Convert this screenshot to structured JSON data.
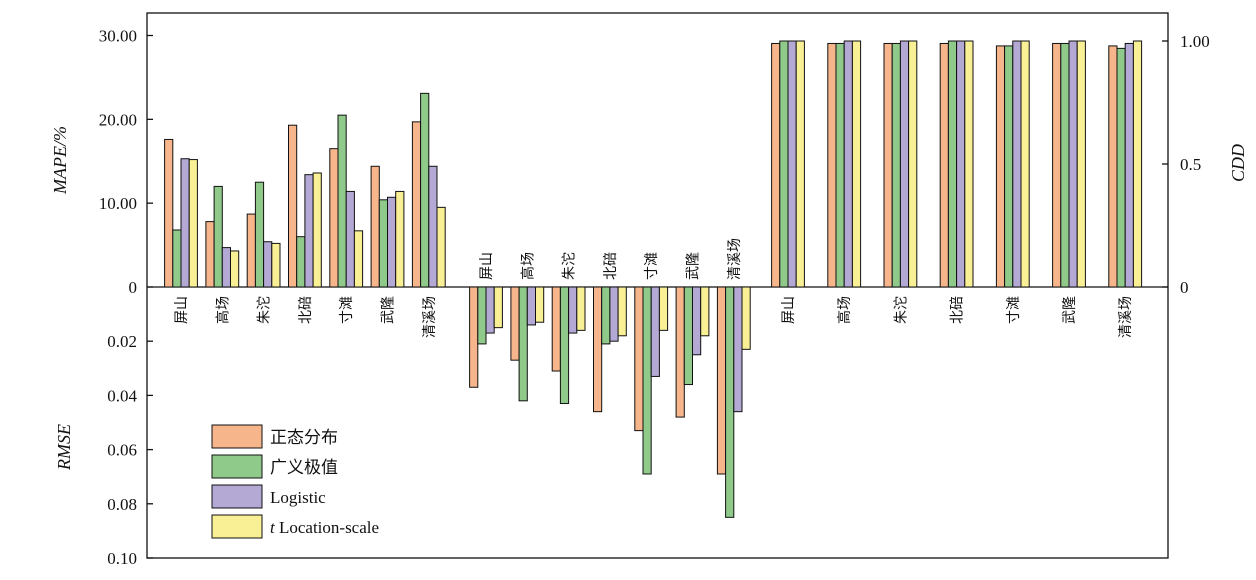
{
  "chart_data": {
    "type": "bar",
    "stations": [
      "屏山",
      "高场",
      "朱沱",
      "北碚",
      "寸滩",
      "武隆",
      "清溪场"
    ],
    "series": [
      {
        "name": "正态分布",
        "color": "#f7b58b"
      },
      {
        "name": "广义极值",
        "color": "#8fca8a"
      },
      {
        "name": "Logistic",
        "color": "#b4a8d4"
      },
      {
        "name": "Location-scale",
        "name_prefix": "t",
        "color": "#f9f095"
      }
    ],
    "panels": [
      {
        "metric": "MAPE/%",
        "axis": "left-upper",
        "range": [
          0,
          32.5
        ],
        "ticks": [
          "0",
          "10.00",
          "20.00",
          "30.00"
        ],
        "tick_values": [
          0,
          10,
          20,
          30
        ],
        "values": {
          "正态分布": [
            17.6,
            7.8,
            8.7,
            19.3,
            16.5,
            14.4,
            19.7
          ],
          "广义极值": [
            6.8,
            12.0,
            12.5,
            6.0,
            20.5,
            10.4,
            23.1
          ],
          "Logistic": [
            15.3,
            4.7,
            5.4,
            13.4,
            11.4,
            10.7,
            14.4
          ],
          "Location-scale": [
            15.2,
            4.3,
            5.2,
            13.6,
            6.7,
            11.4,
            9.5
          ]
        }
      },
      {
        "metric": "RMSE",
        "axis": "left-lower",
        "range": [
          0,
          0.1
        ],
        "ticks": [
          "0.02",
          "0.04",
          "0.06",
          "0.08",
          "0.10"
        ],
        "tick_values": [
          0.02,
          0.04,
          0.06,
          0.08,
          0.1
        ],
        "values": {
          "正态分布": [
            0.037,
            0.027,
            0.031,
            0.046,
            0.053,
            0.048,
            0.069
          ],
          "广义极值": [
            0.021,
            0.042,
            0.043,
            0.021,
            0.069,
            0.036,
            0.085
          ],
          "Logistic": [
            0.017,
            0.014,
            0.017,
            0.02,
            0.033,
            0.025,
            0.046
          ],
          "Location-scale": [
            0.015,
            0.013,
            0.016,
            0.018,
            0.016,
            0.018,
            0.023
          ]
        }
      },
      {
        "metric": "CDD",
        "axis": "right",
        "range": [
          0,
          1.08
        ],
        "ticks": [
          "0",
          "0.5",
          "1.00"
        ],
        "tick_values": [
          0,
          0.5,
          1.0
        ],
        "values": {
          "正态分布": [
            0.99,
            0.99,
            0.99,
            0.99,
            0.98,
            0.99,
            0.98
          ],
          "广义极值": [
            1.0,
            0.99,
            0.99,
            1.0,
            0.98,
            0.99,
            0.97
          ],
          "Logistic": [
            1.0,
            1.0,
            1.0,
            1.0,
            1.0,
            1.0,
            0.99
          ],
          "Location-scale": [
            1.0,
            1.0,
            1.0,
            1.0,
            1.0,
            1.0,
            1.0
          ]
        }
      }
    ],
    "ylabel_upper": "MAPE/%",
    "ylabel_lower": "RMSE",
    "ylabel_right": "CDD",
    "legend_position": "lower-left"
  }
}
